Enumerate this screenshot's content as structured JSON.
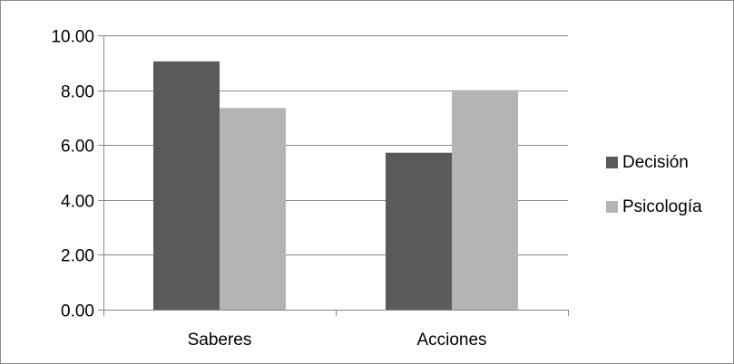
{
  "chart_data": {
    "type": "bar",
    "categories": [
      "Saberes",
      "Acciones"
    ],
    "series": [
      {
        "name": "Decisión",
        "values": [
          9.05,
          5.72
        ],
        "color": "#5a5a5a"
      },
      {
        "name": "Psicología",
        "values": [
          7.35,
          8.0
        ],
        "color": "#b4b4b4"
      }
    ],
    "y_ticks": [
      "0.00",
      "2.00",
      "4.00",
      "6.00",
      "8.00",
      "10.00"
    ],
    "ylim": [
      0,
      10
    ],
    "grid": true,
    "legend_position": "right",
    "title": "",
    "xlabel": "",
    "ylabel": ""
  },
  "colors": {
    "axis": "#868686",
    "grid": "#868686",
    "frame": "#8c8c8c"
  }
}
